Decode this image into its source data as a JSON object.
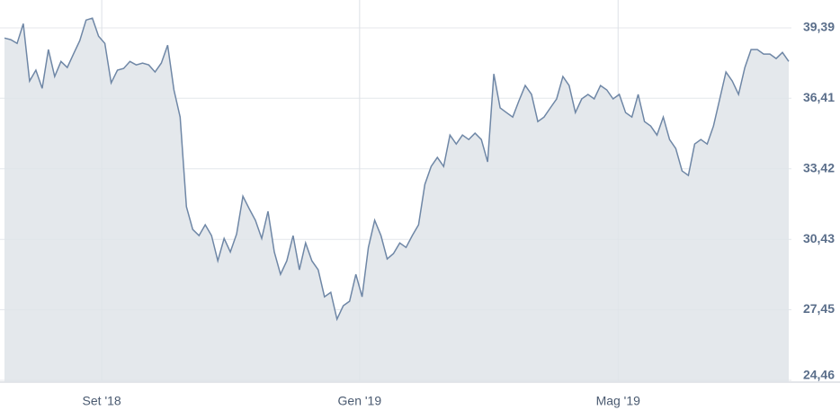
{
  "chart_data": {
    "type": "line",
    "values": [
      38.96,
      38.89,
      38.73,
      39.57,
      37.14,
      37.6,
      36.83,
      38.47,
      37.33,
      37.97,
      37.71,
      38.28,
      38.85,
      39.72,
      39.8,
      39.04,
      38.73,
      37.06,
      37.6,
      37.67,
      37.97,
      37.82,
      37.9,
      37.82,
      37.52,
      37.9,
      38.66,
      36.76,
      35.61,
      31.81,
      30.85,
      30.59,
      31.05,
      30.59,
      29.52,
      30.47,
      29.9,
      30.66,
      32.26,
      31.73,
      31.24,
      30.47,
      31.62,
      29.9,
      28.95,
      29.52,
      30.59,
      29.14,
      30.28,
      29.52,
      29.14,
      28.0,
      28.19,
      27.05,
      27.62,
      27.81,
      28.95,
      28.0,
      30.09,
      31.24,
      30.59,
      29.6,
      29.83,
      30.28,
      30.09,
      30.59,
      31.05,
      32.76,
      33.52,
      33.9,
      33.52,
      34.85,
      34.47,
      34.85,
      34.66,
      34.93,
      34.66,
      33.71,
      37.44,
      36.0,
      35.8,
      35.61,
      36.3,
      36.95,
      36.57,
      35.42,
      35.61,
      36.0,
      36.38,
      37.33,
      36.95,
      35.8,
      36.38,
      36.57,
      36.38,
      36.95,
      36.76,
      36.38,
      36.57,
      35.8,
      35.61,
      36.57,
      35.42,
      35.23,
      34.85,
      35.61,
      34.66,
      34.28,
      33.33,
      33.14,
      34.47,
      34.66,
      34.47,
      35.23,
      36.38,
      37.52,
      37.14,
      36.57,
      37.71,
      38.47,
      38.47,
      38.28,
      38.28,
      38.09,
      38.35,
      37.97
    ],
    "color": "#6f87a6",
    "ylim": [
      24.46,
      40.57
    ],
    "yticks": [
      {
        "value": 24.46,
        "label": "24,46"
      },
      {
        "value": 27.45,
        "label": "27,45"
      },
      {
        "value": 30.43,
        "label": "30,43"
      },
      {
        "value": 33.42,
        "label": "33,42"
      },
      {
        "value": 36.41,
        "label": "36,41"
      },
      {
        "value": 39.39,
        "label": "39,39"
      }
    ],
    "xticks": [
      {
        "value": 15.5,
        "label": "Set '18"
      },
      {
        "value": 56.6,
        "label": "Gen '19"
      },
      {
        "value": 97.8,
        "label": "Mag '19"
      }
    ],
    "grid": true
  }
}
